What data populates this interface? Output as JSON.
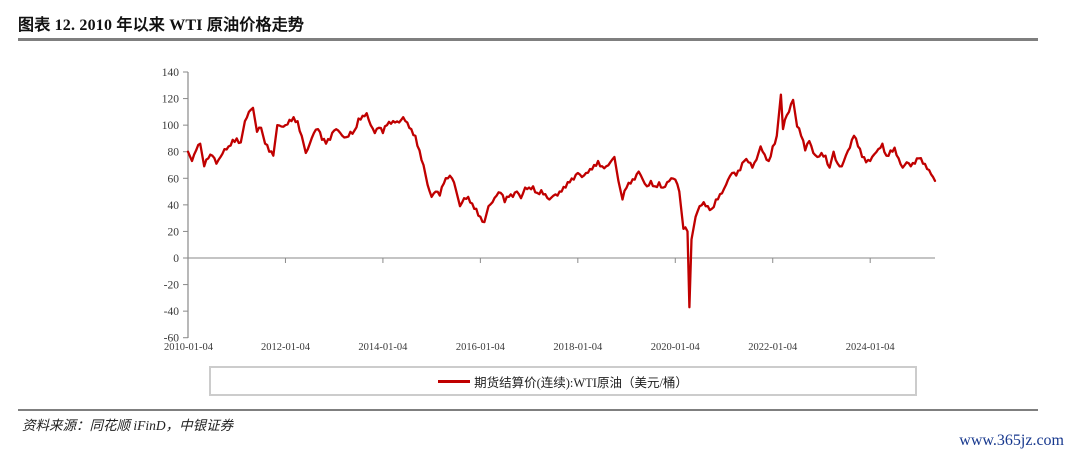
{
  "page": {
    "title": "图表 12. 2010 年以来 WTI 原油价格走势",
    "source_note": "资料来源：同花顺 iFinD，中银证券",
    "watermark": "www.365jz.com"
  },
  "legend": {
    "label": "期货结算价(连续):WTI原油（美元/桶）"
  },
  "colors": {
    "line_red": "#c00000",
    "axis_gray": "#8a8a8a",
    "tick_label": "#3a3a3a",
    "rule_gray": "#7f7f7f",
    "watermark_blue": "#17388e",
    "legend_border": "#cccccc"
  },
  "chart_data": {
    "type": "line",
    "title": "2010 年以来 WTI 原油价格走势",
    "xlabel": "",
    "ylabel": "美元/桶",
    "ylim": [
      -60,
      140
    ],
    "grid": false,
    "legend_position": "bottom-box",
    "y_axis": {
      "min": -60,
      "max": 140,
      "step": 20,
      "ticks": [
        140,
        120,
        100,
        80,
        60,
        40,
        20,
        0,
        -20,
        -40,
        -60
      ]
    },
    "x_axis": {
      "tick_labels": [
        "2010-01-04",
        "2012-01-04",
        "2014-01-04",
        "2016-01-04",
        "2018-01-04",
        "2020-01-04",
        "2022-01-04",
        "2024-01-04"
      ],
      "tick_years": [
        2010,
        2012,
        2014,
        2016,
        2018,
        2020,
        2022,
        2024
      ],
      "range_years": [
        2010.0,
        2025.33
      ]
    },
    "series": [
      {
        "name": "期货结算价(连续):WTI原油（美元/桶）",
        "color": "#c00000",
        "points": [
          [
            2010.0,
            80
          ],
          [
            2010.083,
            73
          ],
          [
            2010.167,
            81
          ],
          [
            2010.25,
            86
          ],
          [
            2010.333,
            69
          ],
          [
            2010.417,
            75
          ],
          [
            2010.5,
            77
          ],
          [
            2010.583,
            71
          ],
          [
            2010.667,
            76
          ],
          [
            2010.75,
            82
          ],
          [
            2010.833,
            84
          ],
          [
            2010.917,
            89
          ],
          [
            2011.0,
            90
          ],
          [
            2011.083,
            87
          ],
          [
            2011.167,
            103
          ],
          [
            2011.25,
            110
          ],
          [
            2011.333,
            113
          ],
          [
            2011.417,
            95
          ],
          [
            2011.5,
            98
          ],
          [
            2011.583,
            86
          ],
          [
            2011.667,
            80
          ],
          [
            2011.75,
            77
          ],
          [
            2011.833,
            100
          ],
          [
            2011.917,
            99
          ],
          [
            2012.0,
            100
          ],
          [
            2012.083,
            104
          ],
          [
            2012.167,
            106
          ],
          [
            2012.25,
            103
          ],
          [
            2012.333,
            92
          ],
          [
            2012.417,
            79
          ],
          [
            2012.5,
            86
          ],
          [
            2012.583,
            94
          ],
          [
            2012.667,
            97
          ],
          [
            2012.75,
            89
          ],
          [
            2012.833,
            86
          ],
          [
            2012.917,
            89
          ],
          [
            2013.0,
            96
          ],
          [
            2013.083,
            96
          ],
          [
            2013.167,
            92
          ],
          [
            2013.25,
            91
          ],
          [
            2013.333,
            95
          ],
          [
            2013.417,
            96
          ],
          [
            2013.5,
            105
          ],
          [
            2013.583,
            107
          ],
          [
            2013.667,
            109
          ],
          [
            2013.75,
            100
          ],
          [
            2013.833,
            94
          ],
          [
            2013.917,
            98
          ],
          [
            2014.0,
            94
          ],
          [
            2014.083,
            100
          ],
          [
            2014.167,
            101
          ],
          [
            2014.25,
            102
          ],
          [
            2014.333,
            102
          ],
          [
            2014.417,
            106
          ],
          [
            2014.5,
            102
          ],
          [
            2014.583,
            97
          ],
          [
            2014.667,
            92
          ],
          [
            2014.75,
            81
          ],
          [
            2014.833,
            70
          ],
          [
            2014.917,
            55
          ],
          [
            2015.0,
            46
          ],
          [
            2015.083,
            50
          ],
          [
            2015.167,
            47
          ],
          [
            2015.25,
            56
          ],
          [
            2015.333,
            60
          ],
          [
            2015.417,
            60
          ],
          [
            2015.5,
            51
          ],
          [
            2015.583,
            39
          ],
          [
            2015.667,
            45
          ],
          [
            2015.75,
            46
          ],
          [
            2015.833,
            41
          ],
          [
            2015.917,
            37
          ],
          [
            2016.0,
            31
          ],
          [
            2016.083,
            27
          ],
          [
            2016.167,
            39
          ],
          [
            2016.25,
            42
          ],
          [
            2016.333,
            47
          ],
          [
            2016.417,
            49
          ],
          [
            2016.5,
            42
          ],
          [
            2016.583,
            46
          ],
          [
            2016.667,
            46
          ],
          [
            2016.75,
            50
          ],
          [
            2016.833,
            45
          ],
          [
            2016.917,
            53
          ],
          [
            2017.0,
            53
          ],
          [
            2017.083,
            54
          ],
          [
            2017.167,
            49
          ],
          [
            2017.25,
            51
          ],
          [
            2017.333,
            48
          ],
          [
            2017.417,
            44
          ],
          [
            2017.5,
            47
          ],
          [
            2017.583,
            47
          ],
          [
            2017.667,
            50
          ],
          [
            2017.75,
            53
          ],
          [
            2017.833,
            57
          ],
          [
            2017.917,
            59
          ],
          [
            2018.0,
            64
          ],
          [
            2018.083,
            61
          ],
          [
            2018.167,
            64
          ],
          [
            2018.25,
            67
          ],
          [
            2018.333,
            70
          ],
          [
            2018.417,
            73
          ],
          [
            2018.5,
            69
          ],
          [
            2018.583,
            69
          ],
          [
            2018.667,
            72
          ],
          [
            2018.75,
            76
          ],
          [
            2018.833,
            58
          ],
          [
            2018.917,
            44
          ],
          [
            2019.0,
            53
          ],
          [
            2019.083,
            56
          ],
          [
            2019.167,
            59
          ],
          [
            2019.25,
            65
          ],
          [
            2019.333,
            59
          ],
          [
            2019.417,
            54
          ],
          [
            2019.5,
            58
          ],
          [
            2019.583,
            54
          ],
          [
            2019.667,
            57
          ],
          [
            2019.75,
            53
          ],
          [
            2019.833,
            57
          ],
          [
            2019.917,
            60
          ],
          [
            2020.0,
            59
          ],
          [
            2020.083,
            50
          ],
          [
            2020.167,
            22
          ],
          [
            2020.25,
            20
          ],
          [
            2020.29,
            -37
          ],
          [
            2020.333,
            14
          ],
          [
            2020.417,
            31
          ],
          [
            2020.5,
            39
          ],
          [
            2020.583,
            42
          ],
          [
            2020.667,
            39
          ],
          [
            2020.75,
            37
          ],
          [
            2020.833,
            44
          ],
          [
            2020.917,
            48
          ],
          [
            2021.0,
            52
          ],
          [
            2021.083,
            59
          ],
          [
            2021.167,
            64
          ],
          [
            2021.25,
            62
          ],
          [
            2021.333,
            66
          ],
          [
            2021.417,
            73
          ],
          [
            2021.5,
            72
          ],
          [
            2021.583,
            68
          ],
          [
            2021.667,
            74
          ],
          [
            2021.75,
            84
          ],
          [
            2021.833,
            78
          ],
          [
            2021.917,
            73
          ],
          [
            2022.0,
            84
          ],
          [
            2022.083,
            92
          ],
          [
            2022.167,
            123
          ],
          [
            2022.21,
            97
          ],
          [
            2022.25,
            104
          ],
          [
            2022.333,
            110
          ],
          [
            2022.417,
            119
          ],
          [
            2022.5,
            99
          ],
          [
            2022.583,
            92
          ],
          [
            2022.667,
            81
          ],
          [
            2022.75,
            88
          ],
          [
            2022.833,
            79
          ],
          [
            2022.917,
            76
          ],
          [
            2023.0,
            79
          ],
          [
            2023.083,
            77
          ],
          [
            2023.167,
            68
          ],
          [
            2023.25,
            80
          ],
          [
            2023.333,
            71
          ],
          [
            2023.417,
            69
          ],
          [
            2023.5,
            77
          ],
          [
            2023.583,
            83
          ],
          [
            2023.667,
            92
          ],
          [
            2023.75,
            84
          ],
          [
            2023.833,
            76
          ],
          [
            2023.917,
            72
          ],
          [
            2024.0,
            73
          ],
          [
            2024.083,
            78
          ],
          [
            2024.167,
            82
          ],
          [
            2024.25,
            86
          ],
          [
            2024.333,
            77
          ],
          [
            2024.417,
            81
          ],
          [
            2024.5,
            83
          ],
          [
            2024.583,
            75
          ],
          [
            2024.667,
            68
          ],
          [
            2024.75,
            72
          ],
          [
            2024.833,
            69
          ],
          [
            2024.917,
            71
          ],
          [
            2025.0,
            75
          ],
          [
            2025.083,
            71
          ],
          [
            2025.167,
            67
          ],
          [
            2025.25,
            63
          ],
          [
            2025.33,
            58
          ]
        ]
      }
    ]
  }
}
